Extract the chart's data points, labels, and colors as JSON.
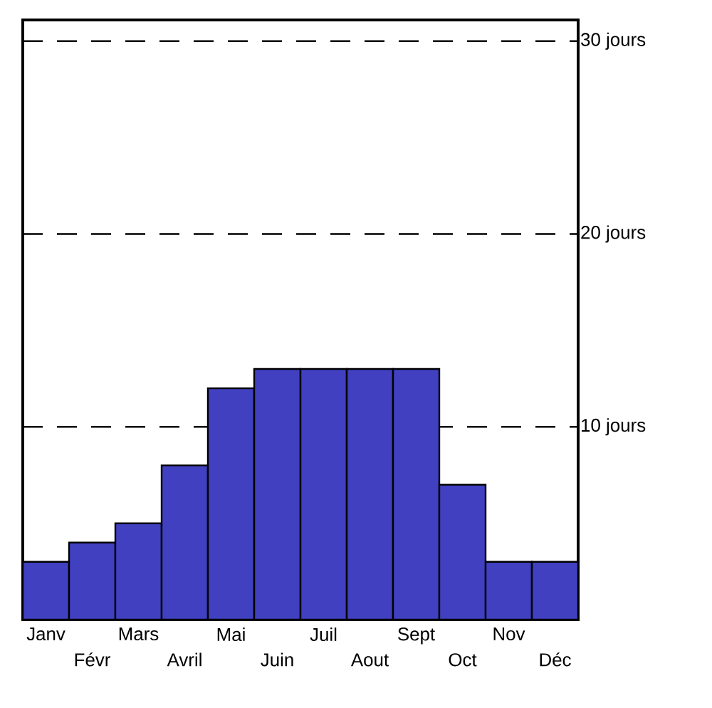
{
  "chart_data": {
    "type": "bar",
    "categories": [
      "Janv",
      "Févr",
      "Mars",
      "Avril",
      "Mai",
      "Juin",
      "Juil",
      "Aout",
      "Sept",
      "Oct",
      "Nov",
      "Déc"
    ],
    "values": [
      3,
      4,
      5,
      8,
      12,
      13,
      13,
      13,
      13,
      7,
      3,
      3
    ],
    "color": "#4040c0",
    "ylim": [
      0,
      31.1
    ],
    "yticks": [
      {
        "value": 10,
        "label": "10 jours"
      },
      {
        "value": 20,
        "label": "20 jours"
      },
      {
        "value": 30,
        "label": "30 jours"
      }
    ],
    "grid": "y"
  }
}
